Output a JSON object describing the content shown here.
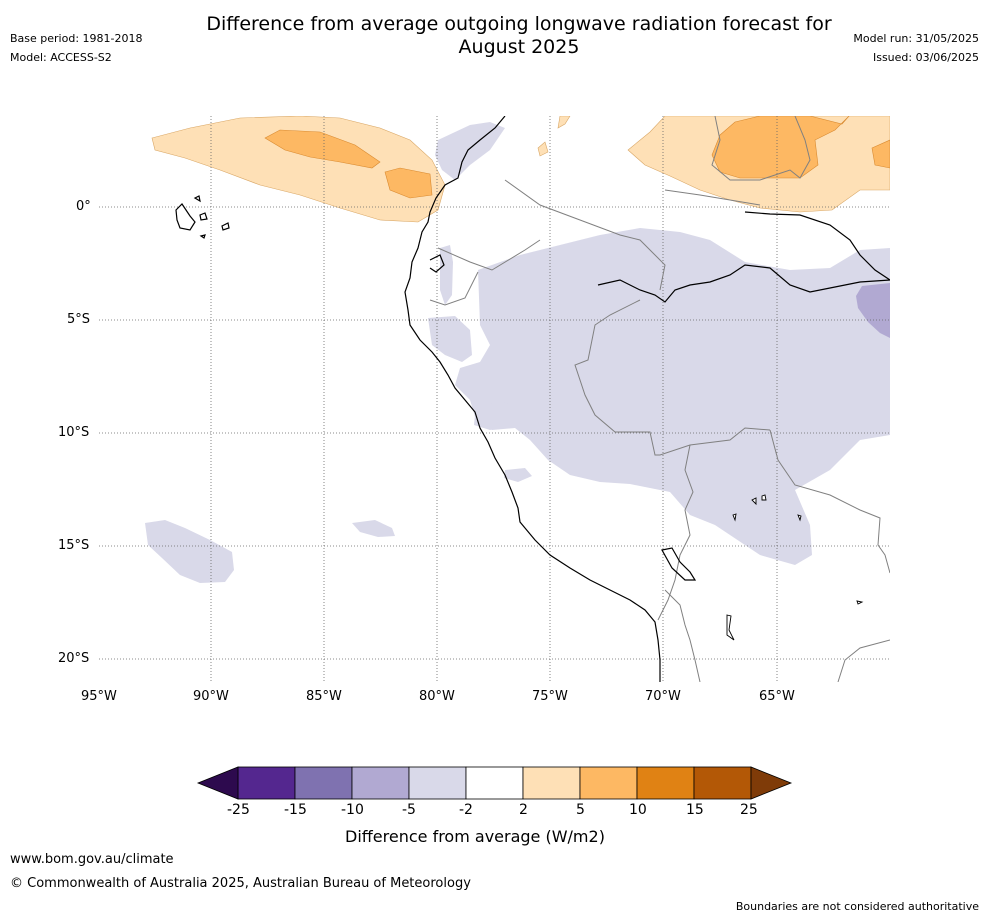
{
  "title": {
    "line1": "Difference from average outgoing longwave radiation forecast for",
    "line2": "August 2025"
  },
  "meta": {
    "base_period": "Base period: 1981-2018",
    "model": "Model: ACCESS-S2",
    "model_run": "Model run: 31/05/2025",
    "issued": "Issued: 03/06/2025"
  },
  "map": {
    "lon_ticks": [
      "95°W",
      "90°W",
      "85°W",
      "80°W",
      "75°W",
      "70°W",
      "65°W"
    ],
    "lat_ticks": [
      "0°",
      "5°S",
      "10°S",
      "15°S",
      "20°S"
    ],
    "lon_range": [
      -95,
      -60
    ],
    "lat_range": [
      -21,
      4
    ]
  },
  "colorbar": {
    "label": "Difference from average (W/m2)",
    "ticks": [
      "-25",
      "-15",
      "-10",
      "-5",
      "-2",
      "2",
      "5",
      "10",
      "15",
      "25"
    ],
    "colors": {
      "below_-25": "#2d0a4e",
      "-25_-15": "#54278f",
      "-15_-10": "#7f72b0",
      "-10_-5": "#b1a9d2",
      "-5_-2": "#d9d9e9",
      "-2_2": "#ffffff",
      "2_5": "#fee0b6",
      "5_10": "#fdb863",
      "10_15": "#e08214",
      "15_25": "#b35806",
      "above_25": "#7f3b08"
    }
  },
  "footer": {
    "url": "www.bom.gov.au/climate",
    "copyright": "© Commonwealth of Australia 2025, Australian Bureau of Meteorology",
    "disclaimer": "Boundaries are not considered authoritative"
  }
}
